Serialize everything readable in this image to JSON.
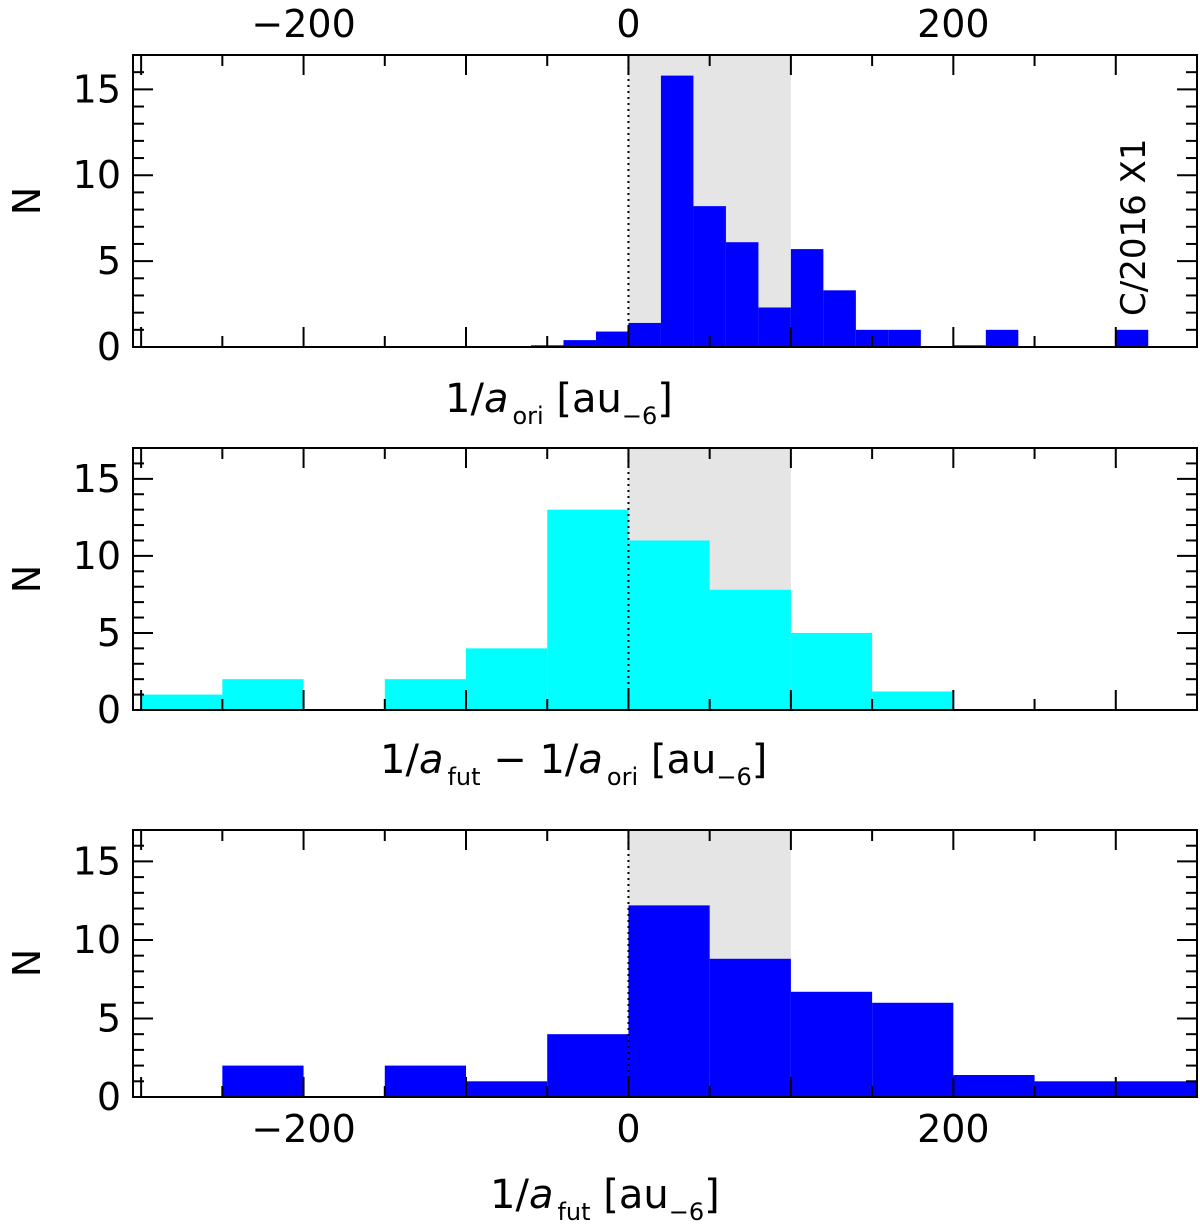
{
  "chart_data": [
    {
      "type": "bar",
      "panel": "top",
      "x_axis_position": "top",
      "xlim": [
        -305,
        350
      ],
      "ylim": [
        0,
        17
      ],
      "xticks": [
        -200,
        0,
        200
      ],
      "xtick_labels": [
        "−200",
        "0",
        "200"
      ],
      "yticks": [
        0,
        5,
        10,
        15
      ],
      "ytick_labels": [
        "0",
        "5",
        "10",
        "15"
      ],
      "ylabel": "N",
      "xlabel": {
        "prefix": "1/",
        "italic": "a",
        "sub": "ori",
        "suffix": " [au",
        "sub2": "−6",
        "close": "]"
      },
      "shaded_region": [
        0,
        100
      ],
      "color": "#0000ff",
      "bin_edges": [
        -60,
        -40,
        -20,
        0,
        20,
        40,
        60,
        80,
        100,
        120,
        140,
        160,
        180,
        200,
        220,
        240,
        260,
        280,
        300,
        320
      ],
      "values": [
        0.1,
        0.4,
        0.9,
        1.4,
        15.8,
        8.2,
        6.1,
        2.3,
        5.7,
        3.3,
        1.0,
        1.0,
        0,
        0.1,
        1.0,
        0,
        0,
        0,
        1.0
      ],
      "annotation": "C/2016 X1"
    },
    {
      "type": "bar",
      "panel": "middle",
      "x_axis_position": "none",
      "xlim": [
        -305,
        350
      ],
      "ylim": [
        0,
        17
      ],
      "xticks": [
        -200,
        0,
        200
      ],
      "yticks": [
        0,
        5,
        10,
        15
      ],
      "ytick_labels": [
        "0",
        "5",
        "10",
        "15"
      ],
      "ylabel": "N",
      "xlabel": {
        "p1": "1/",
        "i1": "a",
        "s1": "fut",
        "mid": " − 1/",
        "i2": "a",
        "s2": "ori",
        "suffix": " [au",
        "sub2": "−6",
        "close": "]"
      },
      "shaded_region": [
        0,
        100
      ],
      "color": "#00ffff",
      "bin_edges": [
        -300,
        -250,
        -200,
        -150,
        -100,
        -50,
        0,
        50,
        100,
        150,
        200
      ],
      "values": [
        1.0,
        2.0,
        0,
        2.0,
        4.0,
        13.0,
        11.0,
        7.8,
        5.0,
        1.2
      ]
    },
    {
      "type": "bar",
      "panel": "bottom",
      "x_axis_position": "bottom",
      "xlim": [
        -305,
        350
      ],
      "ylim": [
        0,
        17
      ],
      "xticks": [
        -200,
        0,
        200
      ],
      "xtick_labels": [
        "−200",
        "0",
        "200"
      ],
      "yticks": [
        0,
        5,
        10,
        15
      ],
      "ytick_labels": [
        "0",
        "5",
        "10",
        "15"
      ],
      "ylabel": "N",
      "xlabel": {
        "prefix": "1/",
        "italic": "a",
        "sub": "fut",
        "suffix": " [au",
        "sub2": "−6",
        "close": "]"
      },
      "shaded_region": [
        0,
        100
      ],
      "color": "#0000ff",
      "bin_edges": [
        -250,
        -200,
        -150,
        -100,
        -50,
        0,
        50,
        100,
        150,
        200,
        250,
        300,
        350
      ],
      "values": [
        2.0,
        0,
        2.0,
        1.0,
        4.0,
        12.2,
        8.8,
        6.7,
        6.0,
        1.4,
        1.0,
        1.0
      ]
    }
  ],
  "colors": {
    "shade": "#e5e5e5",
    "axis": "#000000"
  }
}
